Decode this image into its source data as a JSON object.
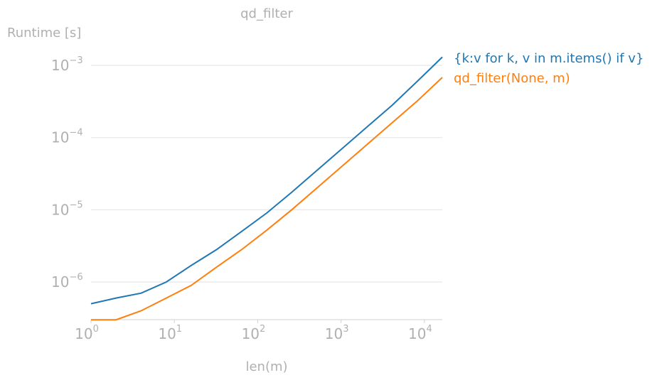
{
  "chart_data": {
    "type": "line",
    "title": "qd_filter",
    "xlabel": "len(m)",
    "ylabel": "Runtime [s]",
    "xscale": "log",
    "yscale": "log",
    "xlim": [
      1,
      16384
    ],
    "ylim": [
      3e-07,
      0.00125
    ],
    "grid": "horizontal",
    "legend": "right, labels at line ends",
    "x_ticks": [
      {
        "value": 1,
        "base": "10",
        "exp": "0"
      },
      {
        "value": 10,
        "base": "10",
        "exp": "1"
      },
      {
        "value": 100,
        "base": "10",
        "exp": "2"
      },
      {
        "value": 1000,
        "base": "10",
        "exp": "3"
      },
      {
        "value": 10000,
        "base": "10",
        "exp": "4"
      }
    ],
    "y_ticks": [
      {
        "value": 1e-06,
        "base": "10",
        "exp": "−6"
      },
      {
        "value": 1e-05,
        "base": "10",
        "exp": "−5"
      },
      {
        "value": 0.0001,
        "base": "10",
        "exp": "−4"
      },
      {
        "value": 0.001,
        "base": "10",
        "exp": "−3"
      }
    ],
    "x": [
      1,
      2,
      4,
      8,
      16,
      32,
      64,
      128,
      256,
      512,
      1024,
      2048,
      4096,
      8192,
      16384
    ],
    "series": [
      {
        "name": "{k:v for k, v in m.items() if v}",
        "color": "#1f77b4",
        "values": [
          5e-07,
          6e-07,
          7e-07,
          1e-06,
          1.7e-06,
          2.8e-06,
          5e-06,
          9e-06,
          1.75e-05,
          3.5e-05,
          7e-05,
          0.00014,
          0.00028,
          0.0006,
          0.0013
        ]
      },
      {
        "name": "qd_filter(None, m)",
        "color": "#ff7f0e",
        "values": [
          3e-07,
          3e-07,
          4e-07,
          6e-07,
          9e-07,
          1.6e-06,
          2.8e-06,
          5.2e-06,
          1e-05,
          2e-05,
          4e-05,
          8e-05,
          0.00016,
          0.00032,
          0.00068
        ]
      }
    ]
  }
}
